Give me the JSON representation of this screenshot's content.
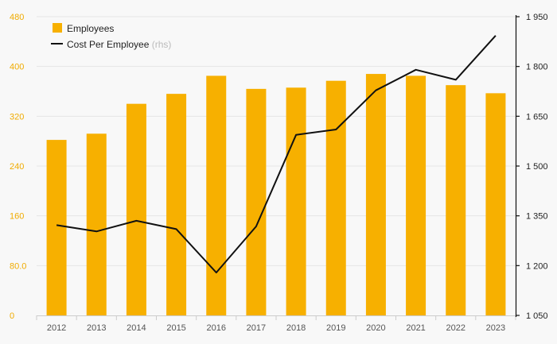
{
  "chart_data": {
    "type": "bar",
    "categories": [
      "2012",
      "2013",
      "2014",
      "2015",
      "2016",
      "2017",
      "2018",
      "2019",
      "2020",
      "2021",
      "2022",
      "2023"
    ],
    "series": [
      {
        "name": "Employees",
        "type": "bar",
        "axis": "left",
        "color": "#f7b000",
        "values": [
          282,
          292,
          340,
          356,
          385,
          364,
          366,
          377,
          388,
          385,
          370,
          357
        ]
      },
      {
        "name": "Cost Per Employee",
        "name_suffix": "(rhs)",
        "type": "line",
        "axis": "right",
        "color": "#111111",
        "values": [
          1322,
          1303,
          1335,
          1310,
          1179,
          1318,
          1594,
          1610,
          1728,
          1790,
          1760,
          1893
        ]
      }
    ],
    "left_axis": {
      "ylim": [
        0,
        480
      ],
      "ticks": [
        0,
        80,
        160,
        240,
        320,
        400,
        480
      ],
      "tick_labels": [
        "0",
        "80.0",
        "160",
        "240",
        "320",
        "400",
        "480"
      ],
      "color": "#f0ab00"
    },
    "right_axis": {
      "ylim": [
        1050,
        1950
      ],
      "ticks": [
        1050,
        1200,
        1350,
        1500,
        1650,
        1800,
        1950
      ],
      "tick_labels": [
        "1 050",
        "1 200",
        "1 350",
        "1 500",
        "1 650",
        "1 800",
        "1 950"
      ],
      "color": "#222222"
    },
    "grid": true,
    "legend": {
      "position": "top-left"
    }
  }
}
